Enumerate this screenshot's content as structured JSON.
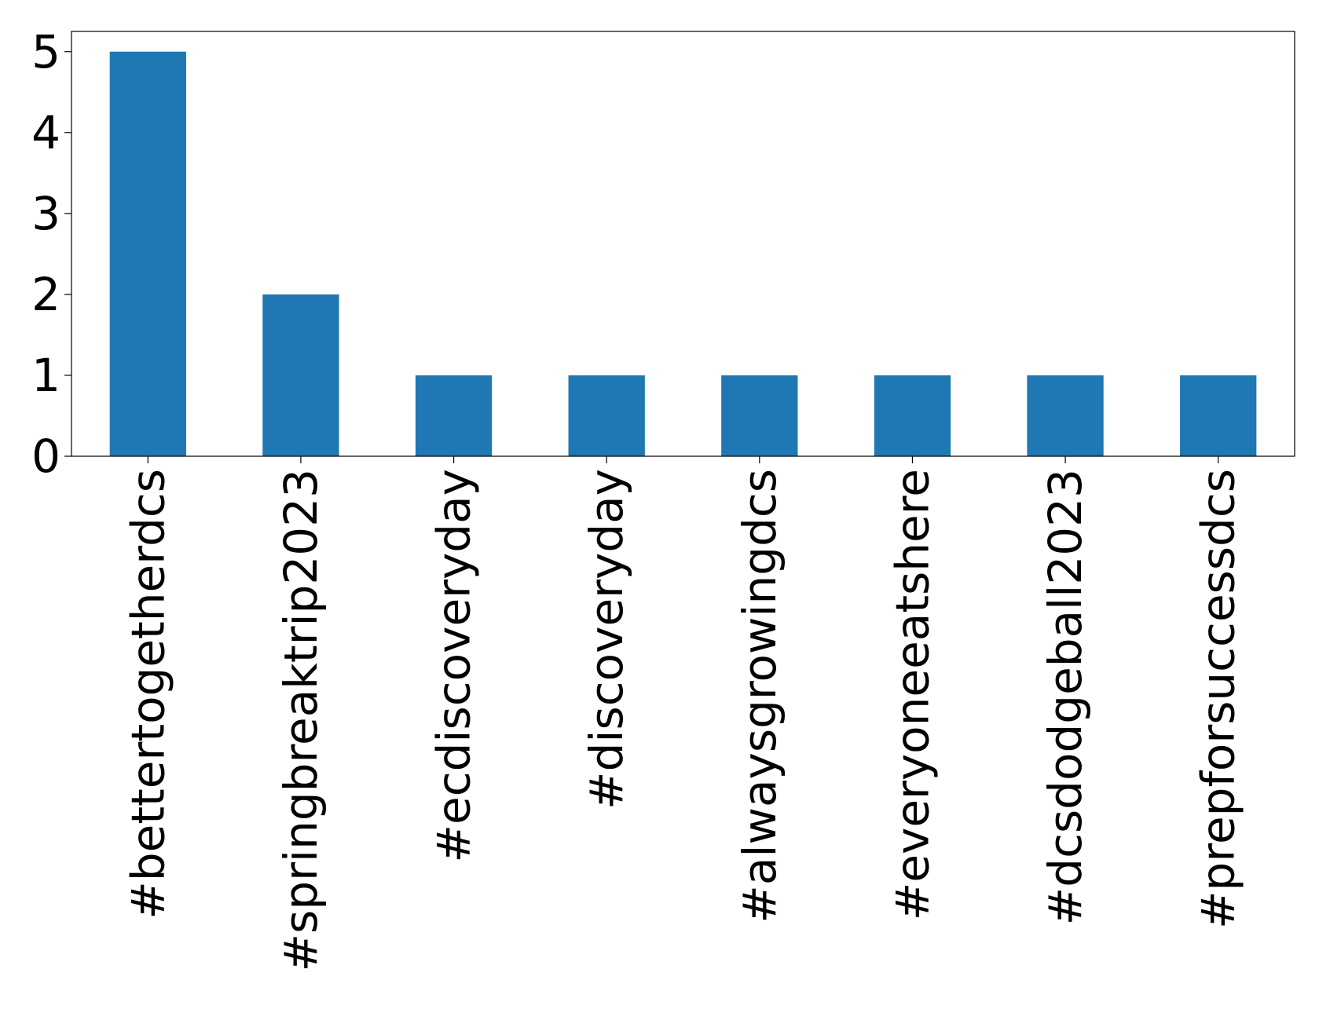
{
  "chart_data": {
    "type": "bar",
    "categories": [
      "#bettertogetherdcs",
      "#springbreaktrip2023",
      "#ecdiscoveryday",
      "#discoveryday",
      "#alwaysgrowingdcs",
      "#everyoneeatshere",
      "#dcsdodgeball2023",
      "#prepforsuccessdcs"
    ],
    "values": [
      5,
      2,
      1,
      1,
      1,
      1,
      1,
      1
    ],
    "color": "#1f77b4",
    "ylim": [
      0,
      5.25
    ],
    "yticks": [
      0,
      1,
      2,
      3,
      4,
      5
    ],
    "grid": false
  }
}
